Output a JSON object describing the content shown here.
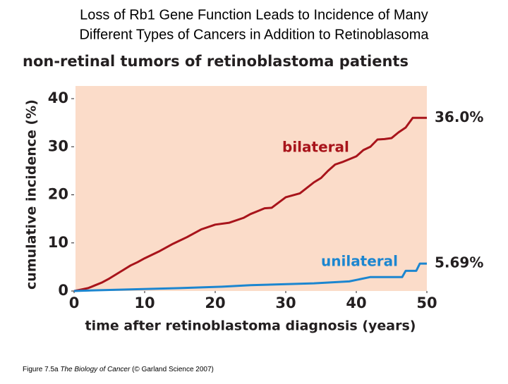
{
  "slide": {
    "title_lines": [
      "Loss of Rb1 Gene Function Leads to Incidence of Many",
      "Different Types of Cancers in Addition to Retinoblasoma"
    ],
    "caption": [
      "Figure 7.5a ",
      "The Biology of Cancer",
      " (© Garland Science 2007)"
    ]
  },
  "chart_data": {
    "type": "line",
    "title": "non-retinal tumors of retinoblastoma patients",
    "x_label": "time after retinoblastoma diagnosis (years)",
    "y_label": "cumulative incidence (%)",
    "xlim": [
      0,
      50
    ],
    "ylim": [
      0,
      40
    ],
    "xticks": [
      0,
      10,
      20,
      30,
      40,
      50
    ],
    "yticks": [
      0,
      10,
      20,
      30,
      40
    ],
    "background": "#fbdcc9",
    "series": [
      {
        "name": "bilateral",
        "color": "#a8141b",
        "end_label": "36.0%",
        "x": [
          0,
          1,
          2,
          3,
          4,
          5,
          6,
          7,
          8,
          9,
          10,
          12,
          14,
          16,
          18,
          20,
          22,
          24,
          25,
          26,
          27,
          28,
          30,
          32,
          34,
          35,
          36,
          37,
          38,
          40,
          41,
          42,
          43,
          44,
          45,
          46,
          47,
          48,
          50
        ],
        "values": [
          0,
          0.3,
          0.6,
          1.2,
          1.8,
          2.6,
          3.5,
          4.4,
          5.3,
          6.0,
          6.8,
          8.2,
          9.8,
          11.2,
          12.8,
          13.8,
          14.2,
          15.2,
          16.0,
          16.6,
          17.2,
          17.3,
          19.5,
          20.3,
          22.6,
          23.5,
          25.0,
          26.3,
          26.8,
          28.0,
          29.3,
          30.0,
          31.5,
          31.6,
          31.8,
          33.0,
          34.0,
          36.0,
          36.0
        ]
      },
      {
        "name": "unilateral",
        "color": "#1c86d0",
        "end_label": "5.69%",
        "x": [
          0,
          2,
          7,
          15,
          21,
          25,
          34,
          39,
          42,
          46.5,
          47,
          48.5,
          49,
          50
        ],
        "values": [
          0,
          0.1,
          0.3,
          0.6,
          0.9,
          1.2,
          1.6,
          2.0,
          2.9,
          2.9,
          4.2,
          4.2,
          5.69,
          5.69
        ]
      }
    ]
  }
}
